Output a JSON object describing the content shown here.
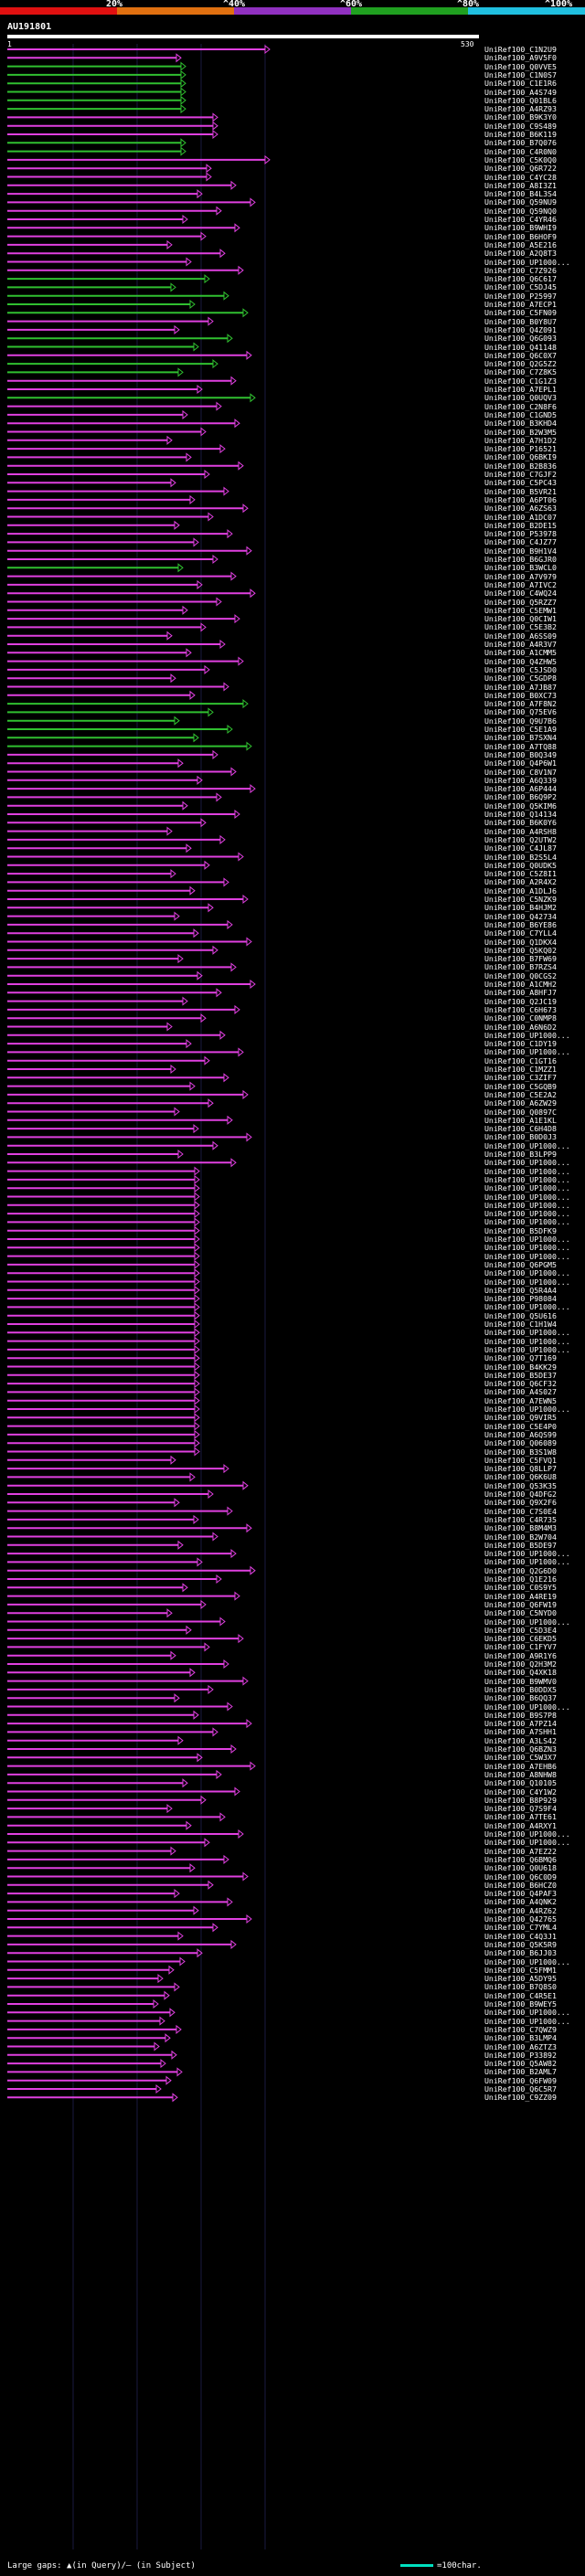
{
  "percent_bar": {
    "labels": [
      "20%",
      "^40%",
      "^60%",
      "^80%",
      "^100%"
    ],
    "colors": [
      "#e01010",
      "#e07010",
      "#9030c0",
      "#20a020",
      "#20c0e0"
    ]
  },
  "query": {
    "name": "AU191801",
    "start": "1",
    "end": "530"
  },
  "hit_colors": {
    "magenta": "#e040e0",
    "green": "#30c030"
  },
  "hits": [
    {
      "id": "UniRef100_C1N2U9",
      "color": "magenta"
    },
    {
      "id": "UniRef100_A9V5F0",
      "color": "magenta"
    },
    {
      "id": "UniRef100_Q0VVE5",
      "color": "green"
    },
    {
      "id": "UniRef100_C1N0S7",
      "color": "green"
    },
    {
      "id": "UniRef100_C1E1R6",
      "color": "green"
    },
    {
      "id": "UniRef100_A4S749",
      "color": "green"
    },
    {
      "id": "UniRef100_Q01BL6",
      "color": "green"
    },
    {
      "id": "UniRef100_A4RZ93",
      "color": "green"
    },
    {
      "id": "UniRef100_B9K3Y0",
      "color": "magenta"
    },
    {
      "id": "UniRef100_C9S489",
      "color": "magenta"
    },
    {
      "id": "UniRef100_B6K119",
      "color": "magenta"
    },
    {
      "id": "UniRef100_B7Q076",
      "color": "green"
    },
    {
      "id": "UniRef100_C4R0N0",
      "color": "green"
    },
    {
      "id": "UniRef100_C5K0Q0",
      "color": "magenta"
    },
    {
      "id": "UniRef100_Q6R722",
      "color": "magenta"
    },
    {
      "id": "UniRef100_C4YC28",
      "color": "magenta"
    },
    {
      "id": "UniRef100_A8I3Z1",
      "color": "magenta"
    },
    {
      "id": "UniRef100_B4L3S4",
      "color": "magenta"
    },
    {
      "id": "UniRef100_Q59NU9",
      "color": "magenta"
    },
    {
      "id": "UniRef100_Q59NQ0",
      "color": "magenta"
    },
    {
      "id": "UniRef100_C4YR46",
      "color": "magenta"
    },
    {
      "id": "UniRef100_B9WHI9",
      "color": "magenta"
    },
    {
      "id": "UniRef100_B6HOF9",
      "color": "magenta"
    },
    {
      "id": "UniRef100_A5E216",
      "color": "magenta"
    },
    {
      "id": "UniRef100_A2Q8T3",
      "color": "magenta"
    },
    {
      "id": "UniRef100_UP1000...",
      "color": "magenta"
    },
    {
      "id": "UniRef100_C7Z926",
      "color": "magenta"
    },
    {
      "id": "UniRef100_Q6C617",
      "color": "green"
    },
    {
      "id": "UniRef100_C5DJ45",
      "color": "green"
    },
    {
      "id": "UniRef100_P25997",
      "color": "green"
    },
    {
      "id": "UniRef100_A7ECP1",
      "color": "green"
    },
    {
      "id": "UniRef100_C5FN09",
      "color": "green"
    },
    {
      "id": "UniRef100_B0Y8U7",
      "color": "magenta"
    },
    {
      "id": "UniRef100_Q4Z091",
      "color": "magenta"
    },
    {
      "id": "UniRef100_Q6G093",
      "color": "green"
    },
    {
      "id": "UniRef100_Q41148",
      "color": "green"
    },
    {
      "id": "UniRef100_Q6C0X7",
      "color": "magenta"
    },
    {
      "id": "UniRef100_Q2G5Z2",
      "color": "green"
    },
    {
      "id": "UniRef100_C7Z8K5",
      "color": "green"
    },
    {
      "id": "UniRef100_C1G1Z3",
      "color": "magenta"
    },
    {
      "id": "UniRef100_A7EPL1",
      "color": "magenta"
    },
    {
      "id": "UniRef100_Q0UQV3",
      "color": "green"
    },
    {
      "id": "UniRef100_C2N8F6",
      "color": "magenta"
    },
    {
      "id": "UniRef100_C1GND5",
      "color": "magenta"
    },
    {
      "id": "UniRef100_B3KHD4",
      "color": "magenta"
    },
    {
      "id": "UniRef100_B2W3M5",
      "color": "magenta"
    },
    {
      "id": "UniRef100_A7H1D2",
      "color": "magenta"
    },
    {
      "id": "UniRef100_P16521",
      "color": "magenta"
    },
    {
      "id": "UniRef100_Q6BKI9",
      "color": "magenta"
    },
    {
      "id": "UniRef100_B2B836",
      "color": "magenta"
    },
    {
      "id": "UniRef100_C7GJF2",
      "color": "magenta"
    },
    {
      "id": "UniRef100_C5PC43",
      "color": "magenta"
    },
    {
      "id": "UniRef100_B5VR21",
      "color": "magenta"
    },
    {
      "id": "UniRef100_A6PT06",
      "color": "magenta"
    },
    {
      "id": "UniRef100_A6ZS63",
      "color": "magenta"
    },
    {
      "id": "UniRef100_A1DC07",
      "color": "magenta"
    },
    {
      "id": "UniRef100_B2DE15",
      "color": "magenta"
    },
    {
      "id": "UniRef100_P53978",
      "color": "magenta"
    },
    {
      "id": "UniRef100_C4JZ77",
      "color": "magenta"
    },
    {
      "id": "UniRef100_B9H1V4",
      "color": "magenta"
    },
    {
      "id": "UniRef100_B6GJR0",
      "color": "magenta"
    },
    {
      "id": "UniRef100_B3WCL0",
      "color": "green"
    },
    {
      "id": "UniRef100_A7V979",
      "color": "magenta"
    },
    {
      "id": "UniRef100_A7IVC2",
      "color": "magenta"
    },
    {
      "id": "UniRef100_C4WQ24",
      "color": "magenta"
    },
    {
      "id": "UniRef100_Q5RZZ7",
      "color": "magenta"
    },
    {
      "id": "UniRef100_C5EMW1",
      "color": "magenta"
    },
    {
      "id": "UniRef100_Q0CIW1",
      "color": "magenta"
    },
    {
      "id": "UniRef100_C5E3B2",
      "color": "magenta"
    },
    {
      "id": "UniRef100_A6SS09",
      "color": "magenta"
    },
    {
      "id": "UniRef100_A4R3V7",
      "color": "magenta"
    },
    {
      "id": "UniRef100_A1CMM5",
      "color": "magenta"
    },
    {
      "id": "UniRef100_Q4ZHW5",
      "color": "magenta"
    },
    {
      "id": "UniRef100_C5JSD0",
      "color": "magenta"
    },
    {
      "id": "UniRef100_C5GDP8",
      "color": "magenta"
    },
    {
      "id": "UniRef100_A7JB87",
      "color": "magenta"
    },
    {
      "id": "UniRef100_B0XC73",
      "color": "magenta"
    },
    {
      "id": "UniRef100_A7F8N2",
      "color": "green"
    },
    {
      "id": "UniRef100_Q75EV6",
      "color": "green"
    },
    {
      "id": "UniRef100_Q9U7B6",
      "color": "green"
    },
    {
      "id": "UniRef100_C5E1A9",
      "color": "green"
    },
    {
      "id": "UniRef100_B7SXN4",
      "color": "green"
    },
    {
      "id": "UniRef100_A7TQ88",
      "color": "green"
    },
    {
      "id": "UniRef100_B0Q349",
      "color": "magenta"
    },
    {
      "id": "UniRef100_Q4P6W1",
      "color": "magenta"
    },
    {
      "id": "UniRef100_C8V1N7",
      "color": "magenta"
    },
    {
      "id": "UniRef100_A6Q339",
      "color": "magenta"
    },
    {
      "id": "UniRef100_A6P444",
      "color": "magenta"
    },
    {
      "id": "UniRef100_B6Q9P2",
      "color": "magenta"
    },
    {
      "id": "UniRef100_Q5KIM6",
      "color": "magenta"
    },
    {
      "id": "UniRef100_Q14134",
      "color": "magenta"
    },
    {
      "id": "UniRef100_B6K0Y6",
      "color": "magenta"
    },
    {
      "id": "UniRef100_A4RSH8",
      "color": "magenta"
    },
    {
      "id": "UniRef100_Q2UTW2",
      "color": "magenta"
    },
    {
      "id": "UniRef100_C4JL87",
      "color": "magenta"
    },
    {
      "id": "UniRef100_B2S5L4",
      "color": "magenta"
    },
    {
      "id": "UniRef100_Q0UDK5",
      "color": "magenta"
    },
    {
      "id": "UniRef100_C5Z8I1",
      "color": "magenta"
    },
    {
      "id": "UniRef100_A2R4X2",
      "color": "magenta"
    },
    {
      "id": "UniRef100_A1DLJ6",
      "color": "magenta"
    },
    {
      "id": "UniRef100_C5NZK9",
      "color": "magenta"
    },
    {
      "id": "UniRef100_B4HJM2",
      "color": "magenta"
    },
    {
      "id": "UniRef100_Q42734",
      "color": "magenta"
    },
    {
      "id": "UniRef100_B6YE86",
      "color": "magenta"
    },
    {
      "id": "UniRef100_C7YLL4",
      "color": "magenta"
    },
    {
      "id": "UniRef100_Q1DKX4",
      "color": "magenta"
    },
    {
      "id": "UniRef100_Q5KQ02",
      "color": "magenta"
    },
    {
      "id": "UniRef100_B7FW69",
      "color": "magenta"
    },
    {
      "id": "UniRef100_B7RZS4",
      "color": "magenta"
    },
    {
      "id": "UniRef100_Q0CGS2",
      "color": "magenta"
    },
    {
      "id": "UniRef100_A1CMH2",
      "color": "magenta"
    },
    {
      "id": "UniRef100_A8HFJ7",
      "color": "magenta"
    },
    {
      "id": "UniRef100_Q2JC19",
      "color": "magenta"
    },
    {
      "id": "UniRef100_C6H673",
      "color": "magenta"
    },
    {
      "id": "UniRef100_C0NMP8",
      "color": "magenta"
    },
    {
      "id": "UniRef100_A6N6D2",
      "color": "magenta"
    },
    {
      "id": "UniRef100_UP1000...",
      "color": "magenta"
    },
    {
      "id": "UniRef100_C1DY19",
      "color": "magenta"
    },
    {
      "id": "UniRef100_UP1000...",
      "color": "magenta"
    },
    {
      "id": "UniRef100_C1GT16",
      "color": "magenta"
    },
    {
      "id": "UniRef100_C1MZZ1",
      "color": "magenta"
    },
    {
      "id": "UniRef100_C3ZIF7",
      "color": "magenta"
    },
    {
      "id": "UniRef100_C5GQB9",
      "color": "magenta"
    },
    {
      "id": "UniRef100_C5E2A2",
      "color": "magenta"
    },
    {
      "id": "UniRef100_A6ZW29",
      "color": "magenta"
    },
    {
      "id": "UniRef100_Q0897C",
      "color": "magenta"
    },
    {
      "id": "UniRef100_A1E1KL",
      "color": "magenta"
    },
    {
      "id": "UniRef100_C6H4D8",
      "color": "magenta"
    },
    {
      "id": "UniRef100_B0D0J3",
      "color": "magenta"
    },
    {
      "id": "UniRef100_UP1000...",
      "color": "magenta"
    },
    {
      "id": "UniRef100_B3LPP9",
      "color": "magenta"
    },
    {
      "id": "UniRef100_UP1000...",
      "color": "magenta"
    },
    {
      "id": "UniRef100_UP1000...",
      "color": "magenta"
    },
    {
      "id": "UniRef100_UP1000...",
      "color": "magenta"
    },
    {
      "id": "UniRef100_UP1000...",
      "color": "magenta"
    },
    {
      "id": "UniRef100_UP1000...",
      "color": "magenta"
    },
    {
      "id": "UniRef100_UP1000...",
      "color": "magenta"
    },
    {
      "id": "UniRef100_UP1000...",
      "color": "magenta"
    },
    {
      "id": "UniRef100_UP1000...",
      "color": "magenta"
    },
    {
      "id": "UniRef100_B5DFK9",
      "color": "magenta"
    },
    {
      "id": "UniRef100_UP1000...",
      "color": "magenta"
    },
    {
      "id": "UniRef100_UP1000...",
      "color": "magenta"
    },
    {
      "id": "UniRef100_UP1000...",
      "color": "magenta"
    },
    {
      "id": "UniRef100_Q6PGM5",
      "color": "magenta"
    },
    {
      "id": "UniRef100_UP1000...",
      "color": "magenta"
    },
    {
      "id": "UniRef100_UP1000...",
      "color": "magenta"
    },
    {
      "id": "UniRef100_Q5R4A4",
      "color": "magenta"
    },
    {
      "id": "UniRef100_P98084",
      "color": "magenta"
    },
    {
      "id": "UniRef100_UP1000...",
      "color": "magenta"
    },
    {
      "id": "UniRef100_Q5U616",
      "color": "magenta"
    },
    {
      "id": "UniRef100_C1H1W4",
      "color": "magenta"
    },
    {
      "id": "UniRef100_UP1000...",
      "color": "magenta"
    },
    {
      "id": "UniRef100_UP1000...",
      "color": "magenta"
    },
    {
      "id": "UniRef100_UP1000...",
      "color": "magenta"
    },
    {
      "id": "UniRef100_Q7T169",
      "color": "magenta"
    },
    {
      "id": "UniRef100_B4KK29",
      "color": "magenta"
    },
    {
      "id": "UniRef100_B5DE37",
      "color": "magenta"
    },
    {
      "id": "UniRef100_Q6CF32",
      "color": "magenta"
    },
    {
      "id": "UniRef100_A4S027",
      "color": "magenta"
    },
    {
      "id": "UniRef100_A7EWN5",
      "color": "magenta"
    },
    {
      "id": "UniRef100_UP1000...",
      "color": "magenta"
    },
    {
      "id": "UniRef100_Q9VIR5",
      "color": "magenta"
    },
    {
      "id": "UniRef100_C5E4P0",
      "color": "magenta"
    },
    {
      "id": "UniRef100_A6QS99",
      "color": "magenta"
    },
    {
      "id": "UniRef100_Q06089",
      "color": "magenta"
    },
    {
      "id": "UniRef100_B3S1W8",
      "color": "magenta"
    },
    {
      "id": "UniRef100_C5FVQ1",
      "color": "magenta"
    },
    {
      "id": "UniRef100_Q8LLP7",
      "color": "magenta"
    },
    {
      "id": "UniRef100_Q6K6U8",
      "color": "magenta"
    },
    {
      "id": "UniRef100_Q53K35",
      "color": "magenta"
    },
    {
      "id": "UniRef100_Q4DFG2",
      "color": "magenta"
    },
    {
      "id": "UniRef100_Q9X2F6",
      "color": "magenta"
    },
    {
      "id": "UniRef100_C7S0E4",
      "color": "magenta"
    },
    {
      "id": "UniRef100_C4R735",
      "color": "magenta"
    },
    {
      "id": "UniRef100_B8M4M3",
      "color": "magenta"
    },
    {
      "id": "UniRef100_B2W704",
      "color": "magenta"
    },
    {
      "id": "UniRef100_B5DE97",
      "color": "magenta"
    },
    {
      "id": "UniRef100_UP1000...",
      "color": "magenta"
    },
    {
      "id": "UniRef100_UP1000...",
      "color": "magenta"
    },
    {
      "id": "UniRef100_Q2G6D0",
      "color": "magenta"
    },
    {
      "id": "UniRef100_Q1E216",
      "color": "magenta"
    },
    {
      "id": "UniRef100_C0S9Y5",
      "color": "magenta"
    },
    {
      "id": "UniRef100_A4RE19",
      "color": "magenta"
    },
    {
      "id": "UniRef100_Q6FW19",
      "color": "magenta"
    },
    {
      "id": "UniRef100_C5NYD0",
      "color": "magenta"
    },
    {
      "id": "UniRef100_UP1000...",
      "color": "magenta"
    },
    {
      "id": "UniRef100_C5D3E4",
      "color": "magenta"
    },
    {
      "id": "UniRef100_C6EKD5",
      "color": "magenta"
    },
    {
      "id": "UniRef100_C1FYV7",
      "color": "magenta"
    },
    {
      "id": "UniRef100_A9R1Y6",
      "color": "magenta"
    },
    {
      "id": "UniRef100_Q2H3M2",
      "color": "magenta"
    },
    {
      "id": "UniRef100_Q4XK18",
      "color": "magenta"
    },
    {
      "id": "UniRef100_B9WMV0",
      "color": "magenta"
    },
    {
      "id": "UniRef100_B0DDX5",
      "color": "magenta"
    },
    {
      "id": "UniRef100_B6QQ37",
      "color": "magenta"
    },
    {
      "id": "UniRef100_UP1000...",
      "color": "magenta"
    },
    {
      "id": "UniRef100_B9S7P8",
      "color": "magenta"
    },
    {
      "id": "UniRef100_A7PZ14",
      "color": "magenta"
    },
    {
      "id": "UniRef100_A7SHH1",
      "color": "magenta"
    },
    {
      "id": "UniRef100_A3LS42",
      "color": "magenta"
    },
    {
      "id": "UniRef100_Q6BZN3",
      "color": "magenta"
    },
    {
      "id": "UniRef100_C5W3X7",
      "color": "magenta"
    },
    {
      "id": "UniRef100_A7EHB6",
      "color": "magenta"
    },
    {
      "id": "UniRef100_A8NHW8",
      "color": "magenta"
    },
    {
      "id": "UniRef100_Q10105",
      "color": "magenta"
    },
    {
      "id": "UniRef100_C4Y1W2",
      "color": "magenta"
    },
    {
      "id": "UniRef100_B8P929",
      "color": "magenta"
    },
    {
      "id": "UniRef100_Q7S9F4",
      "color": "magenta"
    },
    {
      "id": "UniRef100_A7TE61",
      "color": "magenta"
    },
    {
      "id": "UniRef100_A4RXY1",
      "color": "magenta"
    },
    {
      "id": "UniRef100_UP1000...",
      "color": "magenta"
    },
    {
      "id": "UniRef100_UP1000...",
      "color": "magenta"
    },
    {
      "id": "UniRef100_A7EZ22",
      "color": "magenta"
    },
    {
      "id": "UniRef100_Q6BMQ6",
      "color": "magenta"
    },
    {
      "id": "UniRef100_Q0U618",
      "color": "magenta"
    },
    {
      "id": "UniRef100_Q6C0D9",
      "color": "magenta"
    },
    {
      "id": "UniRef100_B6HCZ0",
      "color": "magenta"
    },
    {
      "id": "UniRef100_Q4PAF3",
      "color": "magenta"
    },
    {
      "id": "UniRef100_A4QNK2",
      "color": "magenta"
    },
    {
      "id": "UniRef100_A4RZ62",
      "color": "magenta"
    },
    {
      "id": "UniRef100_Q42765",
      "color": "magenta"
    },
    {
      "id": "UniRef100_C7YML4",
      "color": "magenta"
    },
    {
      "id": "UniRef100_C4Q3J1",
      "color": "magenta"
    },
    {
      "id": "UniRef100_Q5K5R9",
      "color": "magenta"
    },
    {
      "id": "UniRef100_B6JJ03",
      "color": "magenta"
    },
    {
      "id": "UniRef100_UP1000...",
      "color": "magenta"
    },
    {
      "id": "UniRef100_C5FMM1",
      "color": "magenta"
    },
    {
      "id": "UniRef100_A5DY95",
      "color": "magenta"
    },
    {
      "id": "UniRef100_B7Q8S0",
      "color": "magenta"
    },
    {
      "id": "UniRef100_C4R5E1",
      "color": "magenta"
    },
    {
      "id": "UniRef100_B9WEY5",
      "color": "magenta"
    },
    {
      "id": "UniRef100_UP1000...",
      "color": "magenta"
    },
    {
      "id": "UniRef100_UP1000...",
      "color": "magenta"
    },
    {
      "id": "UniRef100_C7QWZ9",
      "color": "magenta"
    },
    {
      "id": "UniRef100_B3LMP4",
      "color": "magenta"
    },
    {
      "id": "UniRef100_A6ZTZ3",
      "color": "magenta"
    },
    {
      "id": "UniRef100_P33892",
      "color": "magenta"
    },
    {
      "id": "UniRef100_Q5AW82",
      "color": "magenta"
    },
    {
      "id": "UniRef100_B2AML7",
      "color": "magenta"
    },
    {
      "id": "UniRef100_Q6FW09",
      "color": "magenta"
    },
    {
      "id": "UniRef100_Q6C5R7",
      "color": "magenta"
    },
    {
      "id": "UniRef100_C9ZZ09",
      "color": "magenta"
    }
  ],
  "footer": {
    "gaps_label": "Large gaps: ▲(in Query)/‒ (in Subject)",
    "scale_label": "=100char."
  }
}
